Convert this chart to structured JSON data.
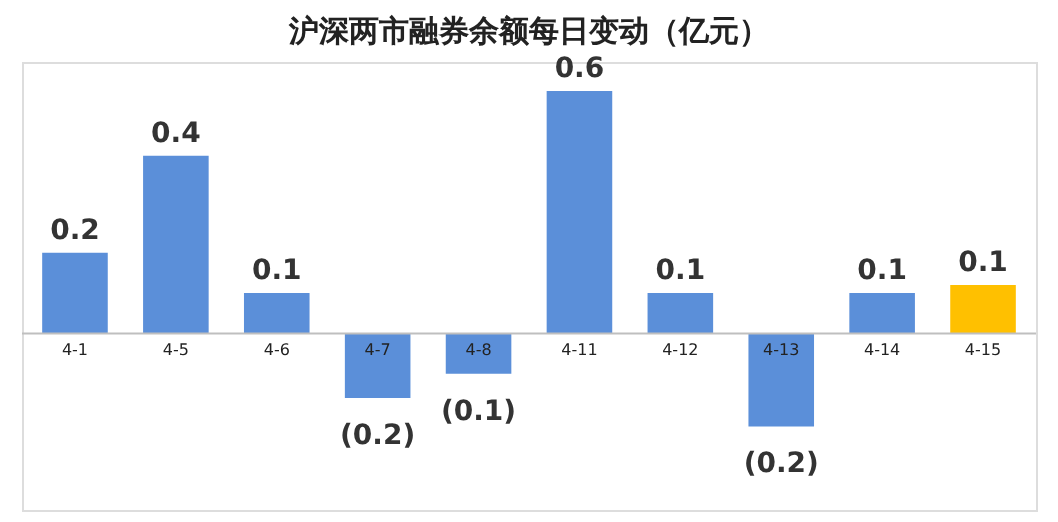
{
  "chart_data": {
    "type": "bar",
    "title": "沪深两市融券余额每日变动（亿元）",
    "categories": [
      "4-1",
      "4-5",
      "4-6",
      "4-7",
      "4-8",
      "4-11",
      "4-12",
      "4-13",
      "4-14",
      "4-15"
    ],
    "values": [
      0.2,
      0.44,
      0.1,
      -0.16,
      -0.1,
      0.6,
      0.1,
      -0.23,
      0.1,
      0.12
    ],
    "colors": [
      "#5b8fd9",
      "#5b8fd9",
      "#5b8fd9",
      "#5b8fd9",
      "#5b8fd9",
      "#5b8fd9",
      "#5b8fd9",
      "#5b8fd9",
      "#5b8fd9",
      "#ffc000"
    ],
    "value_labels": [
      "0.2",
      "0.4",
      "0.1",
      "(0.2)",
      "(0.1)",
      "0.6",
      "0.1",
      "(0.2)",
      "0.1",
      "0.1"
    ]
  }
}
